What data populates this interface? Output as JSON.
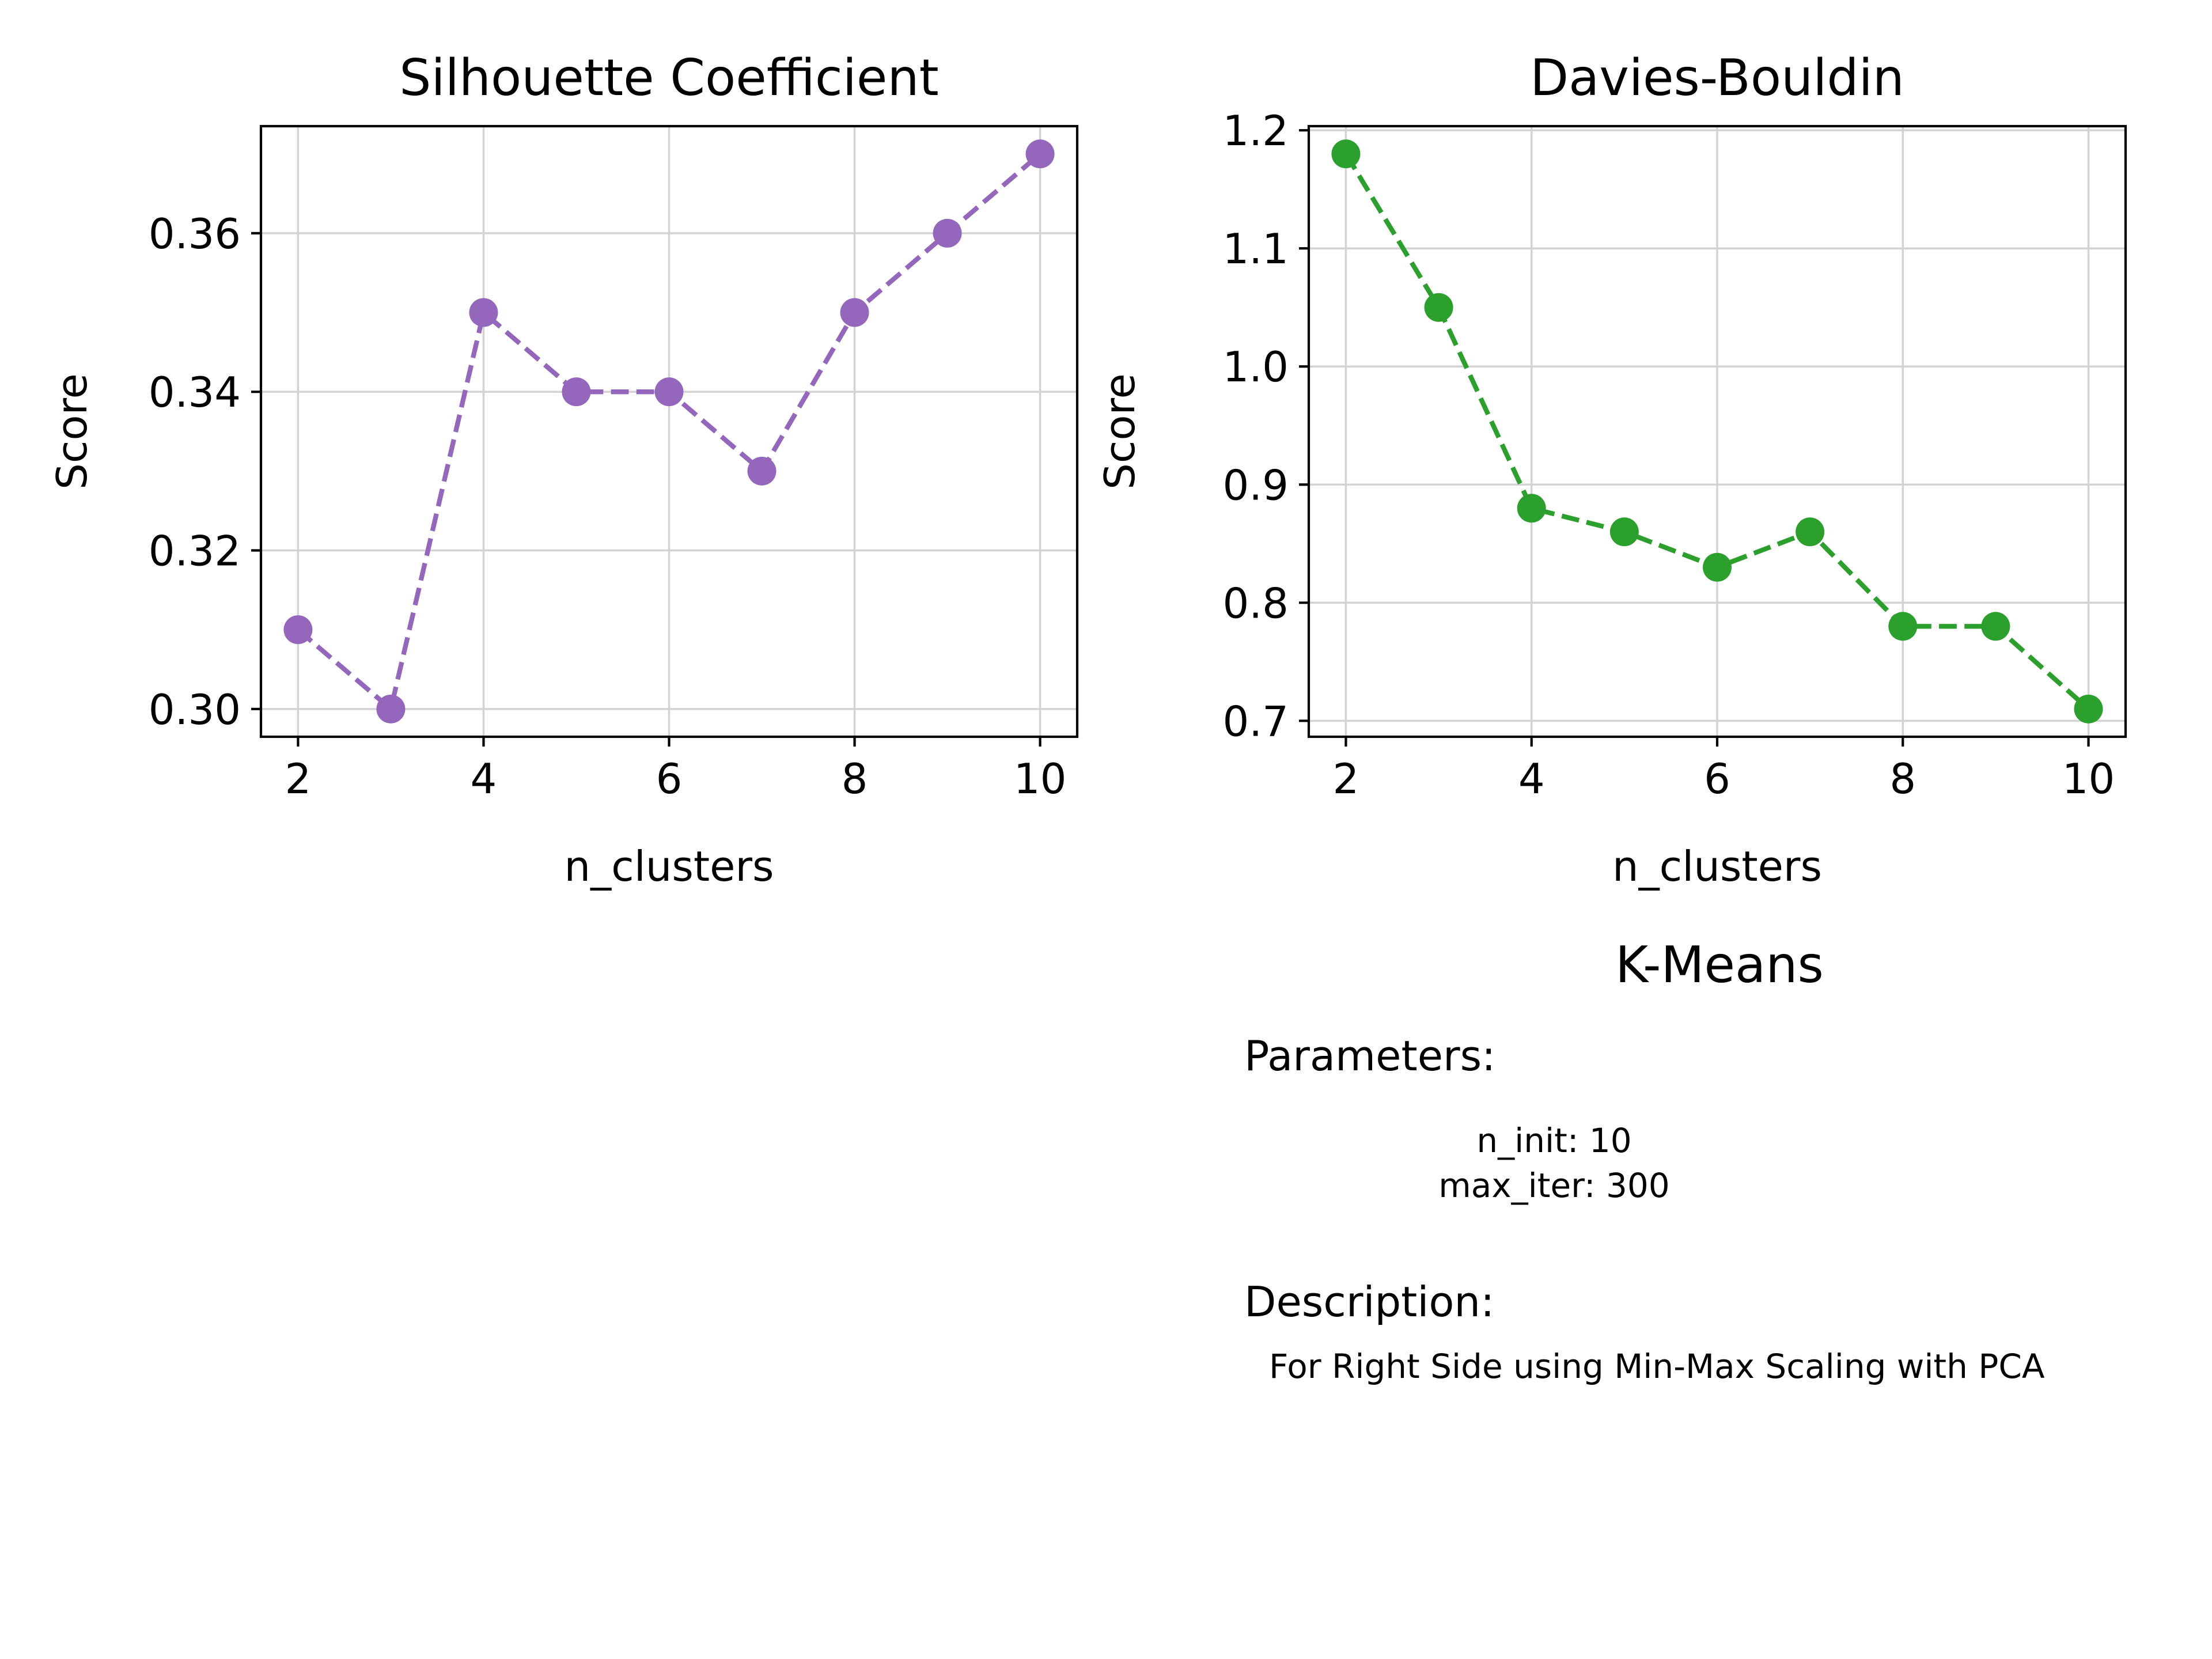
{
  "chart_data": [
    {
      "type": "line",
      "title": "Silhouette Coefficient",
      "xlabel": "n_clusters",
      "ylabel": "Score",
      "x": [
        2,
        3,
        4,
        5,
        6,
        7,
        8,
        9,
        10
      ],
      "series": [
        {
          "values": [
            0.31,
            0.3,
            0.35,
            0.34,
            0.34,
            0.33,
            0.35,
            0.36,
            0.37
          ],
          "color": "#9467bd"
        }
      ],
      "xlim": [
        1.6,
        10.4
      ],
      "ylim": [
        0.2965,
        0.3735
      ],
      "xticks": [
        2,
        4,
        6,
        8,
        10
      ],
      "xtick_labels": [
        "2",
        "4",
        "6",
        "8",
        "10"
      ],
      "yticks": [
        0.3,
        0.32,
        0.34,
        0.36
      ],
      "ytick_labels": [
        "0.30",
        "0.32",
        "0.34",
        "0.36"
      ],
      "line_style": "dashed",
      "marker": "circle",
      "grid": true
    },
    {
      "type": "line",
      "title": "Davies-Bouldin",
      "xlabel": "n_clusters",
      "ylabel": "Score",
      "x": [
        2,
        3,
        4,
        5,
        6,
        7,
        8,
        9,
        10
      ],
      "series": [
        {
          "values": [
            1.18,
            1.05,
            0.88,
            0.86,
            0.83,
            0.86,
            0.78,
            0.78,
            0.71
          ],
          "color": "#2ca02c"
        }
      ],
      "xlim": [
        1.6,
        10.4
      ],
      "ylim": [
        0.6865,
        1.2035
      ],
      "xticks": [
        2,
        4,
        6,
        8,
        10
      ],
      "xtick_labels": [
        "2",
        "4",
        "6",
        "8",
        "10"
      ],
      "yticks": [
        0.7,
        0.8,
        0.9,
        1.0,
        1.1,
        1.2
      ],
      "ytick_labels": [
        "0.7",
        "0.8",
        "0.9",
        "1.0",
        "1.1",
        "1.2"
      ],
      "line_style": "dashed",
      "marker": "circle",
      "grid": true
    }
  ],
  "info": {
    "title": "K-Means",
    "parameters_heading": "Parameters:",
    "parameters": [
      "n_init: 10",
      "max_iter: 300"
    ],
    "description_heading": "Description:",
    "description": "For Right Side using Min-Max Scaling with PCA"
  }
}
